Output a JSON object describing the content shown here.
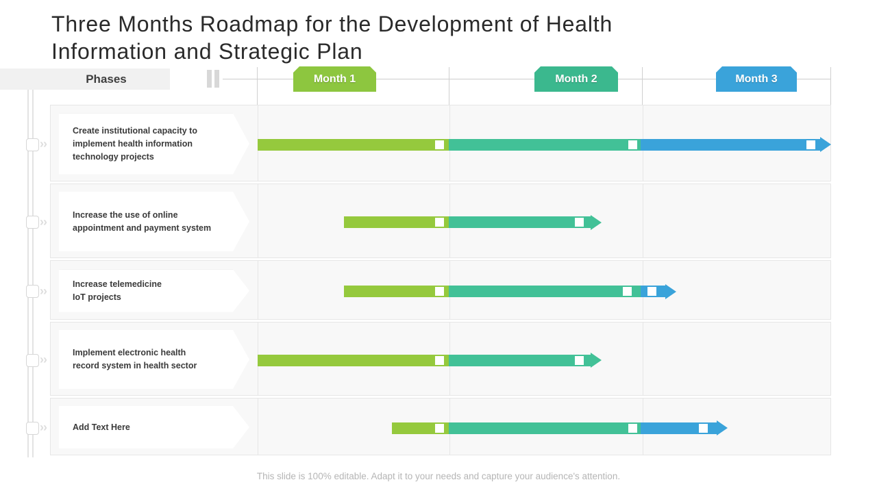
{
  "slide": {
    "title": "Three Months Roadmap for the Development of Health Information and Strategic Plan",
    "phases_label": "Phases",
    "footer": "This slide is 100% editable. Adapt it to your needs and capture your audience's attention."
  },
  "chart_data": {
    "type": "bar",
    "variant": "gantt-roadmap",
    "title": "Three Months Roadmap for the Development of Health Information and Strategic Plan",
    "x_axis_label": "Phases",
    "x_range_months": [
      0,
      3
    ],
    "grid": true,
    "months": [
      {
        "label": "Month 1",
        "color": "#8dc63f"
      },
      {
        "label": "Month 2",
        "color": "#3bb88e"
      },
      {
        "label": "Month 3",
        "color": "#3aa3da"
      }
    ],
    "colors": {
      "green": "#95c93d",
      "teal": "#42c197",
      "blue": "#3aa3da"
    },
    "tasks": [
      {
        "label": "Create institutional capacity to\nimplement health information\ntechnology projects",
        "arrow": true,
        "segments": [
          {
            "start": 0,
            "end": 1,
            "color": "green",
            "marker": 0.95
          },
          {
            "start": 1,
            "end": 2,
            "color": "teal",
            "marker": 1.96
          },
          {
            "start": 2,
            "end": 2.94,
            "color": "blue",
            "marker": 2.89
          }
        ]
      },
      {
        "label": "Increase the use of online\nappointment and payment system",
        "arrow": true,
        "segments": [
          {
            "start": 0.45,
            "end": 1,
            "color": "green",
            "marker": 0.95
          },
          {
            "start": 1,
            "end": 1.74,
            "color": "teal",
            "marker": 1.68
          }
        ]
      },
      {
        "label": "Increase telemedicine\nIoT projects",
        "arrow": true,
        "segments": [
          {
            "start": 0.45,
            "end": 1,
            "color": "green",
            "marker": 0.95
          },
          {
            "start": 1,
            "end": 2,
            "color": "teal",
            "marker": 1.93
          },
          {
            "start": 2,
            "end": 2.13,
            "color": "blue",
            "marker": 2.06
          }
        ]
      },
      {
        "label": "Implement electronic health\nrecord system in health sector",
        "arrow": true,
        "segments": [
          {
            "start": 0,
            "end": 1,
            "color": "green",
            "marker": 0.95
          },
          {
            "start": 1,
            "end": 1.74,
            "color": "teal",
            "marker": 1.68
          }
        ]
      },
      {
        "label": "Add Text Here",
        "arrow": true,
        "segments": [
          {
            "start": 0.7,
            "end": 1,
            "color": "green",
            "marker": 0.95
          },
          {
            "start": 1,
            "end": 2,
            "color": "teal",
            "marker": 1.96
          },
          {
            "start": 2,
            "end": 2.4,
            "color": "blue",
            "marker": 2.33
          }
        ]
      }
    ]
  }
}
